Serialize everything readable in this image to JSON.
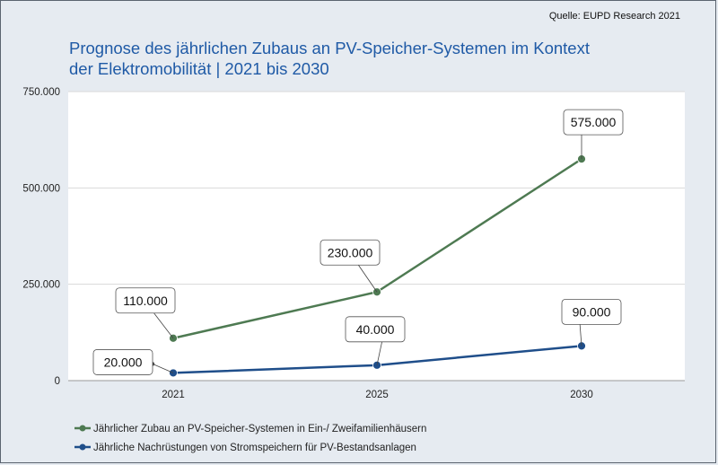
{
  "source": "Quelle: EUPD Research 2021",
  "title_line1": "Prognose des jährlichen Zubaus an PV-Speicher-Systemen im Kontext",
  "title_line2": "der Elektromobilität  | 2021 bis 2030",
  "chart_data": {
    "type": "line",
    "title": "Prognose des jährlichen Zubaus an PV-Speicher-Systemen im Kontext der Elektromobilität | 2021 bis 2030",
    "categories": [
      "2021",
      "2025",
      "2030"
    ],
    "ylim": [
      0,
      750000
    ],
    "yticks": [
      0,
      250000,
      500000,
      750000
    ],
    "ytick_labels": [
      "0",
      "250.000",
      "500.000",
      "750.000"
    ],
    "grid": true,
    "legend_position": "bottom",
    "series": [
      {
        "name": "Jährlicher Zubau an PV-Speicher-Systemen in Ein-/ Zweifamilienhäusern",
        "values": [
          110000,
          230000,
          575000
        ],
        "labels": [
          "110.000",
          "230.000",
          "575.000"
        ],
        "color": "#4e7a52"
      },
      {
        "name": "Jährliche Nachrüstungen von Stromspeichern für PV-Bestandsanlagen",
        "values": [
          20000,
          40000,
          90000
        ],
        "labels": [
          "20.000",
          "40.000",
          "90.000"
        ],
        "color": "#1f4e8a"
      }
    ]
  }
}
